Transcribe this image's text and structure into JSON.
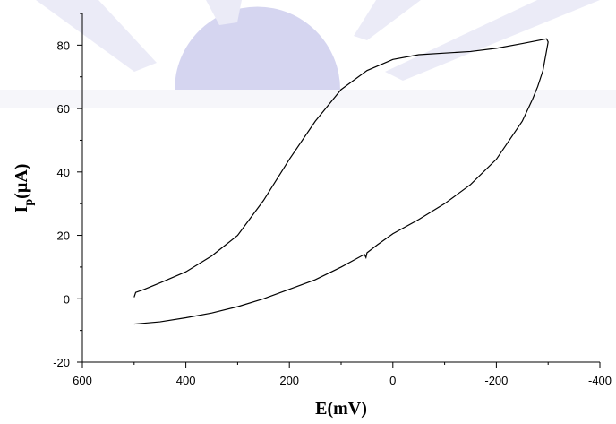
{
  "chart_data": {
    "type": "line",
    "x_label": "E(mV)",
    "y_label": [
      "I",
      "p",
      "(µA)"
    ],
    "x": [
      500,
      497,
      480,
      450,
      400,
      350,
      300,
      250,
      200,
      150,
      100,
      50,
      0,
      -50,
      -100,
      -150,
      -200,
      -250,
      -297,
      -300,
      -290,
      -280,
      -270,
      -250,
      -200,
      -150,
      -100,
      -50,
      0,
      30,
      50,
      52,
      55,
      100,
      150,
      200,
      250,
      300,
      350,
      400,
      450,
      500
    ],
    "series": [
      {
        "color": "#000000",
        "values": [
          0.5,
          2,
          3,
          5,
          8.5,
          13.5,
          20,
          31,
          44,
          56,
          66,
          72,
          75.5,
          77,
          77.5,
          78,
          79,
          80.5,
          82,
          81,
          72,
          67,
          63,
          56,
          44,
          36,
          30,
          25,
          20.5,
          17,
          14.5,
          13,
          14,
          10,
          6,
          3,
          0,
          -2.5,
          -4.5,
          -6,
          -7.3,
          -8
        ]
      }
    ],
    "xlim": [
      600,
      -400
    ],
    "xticks": [
      600,
      400,
      200,
      0,
      -200,
      -400
    ],
    "x_minor_ticks": [
      500,
      300,
      100,
      -100,
      -300
    ],
    "ylim": [
      -20,
      90
    ],
    "yticks": [
      -20,
      0,
      20,
      40,
      60,
      80
    ],
    "y_minor_ticks": [
      -10,
      10,
      30,
      50,
      70,
      90
    ]
  }
}
